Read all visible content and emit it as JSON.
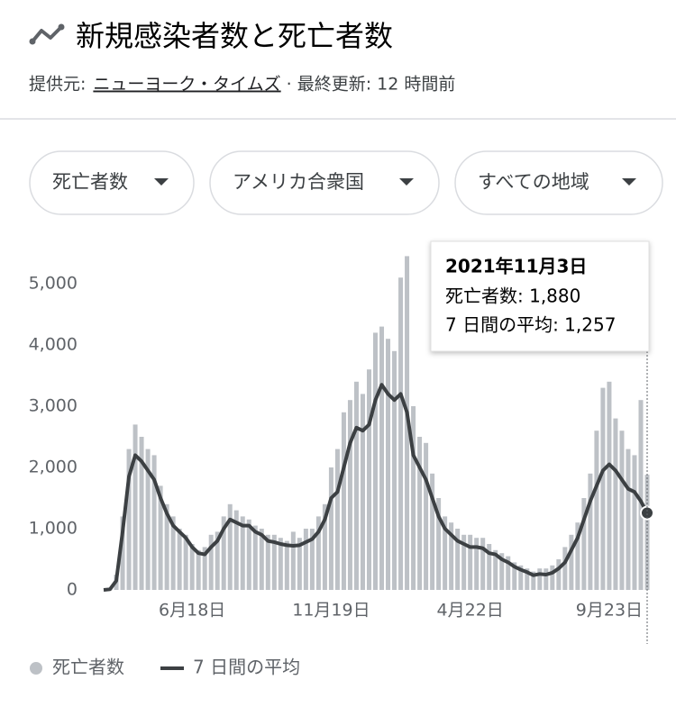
{
  "header": {
    "title": "新規感染者数と死亡者数",
    "source_prefix": "提供元:",
    "source_link": "ニューヨーク・タイムズ",
    "updated": "· 最終更新: 12 時間前"
  },
  "filters": [
    "死亡者数",
    "アメリカ合衆国",
    "すべての地域"
  ],
  "chart_data": {
    "type": "bar",
    "categories": [
      null,
      null,
      null,
      null,
      null,
      null,
      null,
      null,
      null,
      null,
      null,
      null,
      null,
      null,
      "6月18日",
      null,
      null,
      null,
      null,
      null,
      null,
      null,
      null,
      null,
      null,
      null,
      null,
      null,
      null,
      null,
      null,
      null,
      null,
      null,
      null,
      null,
      "11月19日",
      null,
      null,
      null,
      null,
      null,
      null,
      null,
      null,
      null,
      null,
      null,
      null,
      null,
      null,
      null,
      null,
      null,
      null,
      null,
      null,
      null,
      "4月22日",
      null,
      null,
      null,
      null,
      null,
      null,
      null,
      null,
      null,
      null,
      null,
      null,
      null,
      null,
      null,
      null,
      null,
      null,
      null,
      null,
      null,
      "9月23日",
      null,
      null,
      null,
      null,
      null,
      null
    ],
    "series": [
      {
        "name": "死亡者数",
        "type": "bar",
        "color": "#bdc1c6",
        "values": [
          0,
          20,
          250,
          1200,
          2300,
          2700,
          2500,
          2300,
          2200,
          1700,
          1400,
          1200,
          1000,
          900,
          750,
          650,
          700,
          900,
          950,
          1200,
          1400,
          1300,
          1200,
          1150,
          1050,
          1000,
          900,
          900,
          850,
          800,
          950,
          850,
          1000,
          1000,
          1200,
          1400,
          2000,
          2300,
          2900,
          3100,
          3400,
          3200,
          3600,
          4200,
          4300,
          4100,
          3900,
          5100,
          5450,
          3000,
          2500,
          2400,
          1900,
          1500,
          1200,
          1100,
          1000,
          900,
          900,
          850,
          850,
          750,
          650,
          600,
          550,
          450,
          400,
          350,
          300,
          350,
          350,
          400,
          500,
          700,
          900,
          1100,
          1500,
          1900,
          2600,
          3300,
          3400,
          2800,
          2600,
          2300,
          2200,
          3100,
          1880
        ]
      },
      {
        "name": "7 日間の平均",
        "type": "line",
        "color": "#3c4043",
        "values": [
          0,
          10,
          150,
          950,
          1850,
          2200,
          2100,
          1950,
          1800,
          1500,
          1250,
          1050,
          950,
          850,
          700,
          600,
          580,
          700,
          800,
          1000,
          1150,
          1100,
          1050,
          1050,
          950,
          900,
          800,
          780,
          750,
          730,
          720,
          730,
          780,
          830,
          950,
          1150,
          1500,
          1600,
          2000,
          2400,
          2650,
          2600,
          2700,
          3100,
          3350,
          3200,
          3100,
          3200,
          2900,
          2200,
          2000,
          1800,
          1500,
          1200,
          1000,
          900,
          800,
          750,
          700,
          700,
          680,
          600,
          580,
          500,
          450,
          380,
          330,
          290,
          240,
          260,
          250,
          280,
          350,
          450,
          650,
          850,
          1150,
          1450,
          1700,
          1950,
          2050,
          1950,
          1800,
          1650,
          1600,
          1450,
          1257
        ]
      }
    ],
    "ylim": [
      0,
      5500
    ],
    "yticks": [
      0,
      {
        "value": 1000,
        "label": "1,000"
      },
      {
        "value": 2000,
        "label": "2,000"
      },
      {
        "value": 3000,
        "label": "3,000"
      },
      {
        "value": 4000,
        "label": "4,000"
      },
      {
        "value": 5000,
        "label": "5,000"
      }
    ],
    "grid": false,
    "tooltip": {
      "title": "2021年11月3日",
      "lines": [
        "死亡者数: 1,880",
        "7 日間の平均: 1,257"
      ]
    }
  }
}
